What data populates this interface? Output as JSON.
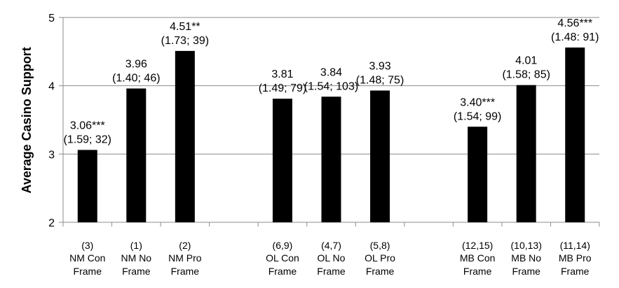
{
  "chart_data": {
    "type": "bar",
    "title": "",
    "xlabel": "",
    "ylabel": "Average Casino Support",
    "ylim": [
      2,
      5
    ],
    "yticks": [
      "2",
      "3",
      "4",
      "5"
    ],
    "grid": true,
    "bar_color": "#000000",
    "groups": [
      {
        "bars": [
          {
            "index_label": "(3)",
            "name_line1": "NM Con",
            "name_line2": "Frame",
            "value": 3.06,
            "label_line1": "3.06***",
            "label_line2": "(1.59; 32)"
          },
          {
            "index_label": "(1)",
            "name_line1": "NM No",
            "name_line2": "Frame",
            "value": 3.96,
            "label_line1": "3.96",
            "label_line2": "(1.40; 46)"
          },
          {
            "index_label": "(2)",
            "name_line1": "NM Pro",
            "name_line2": "Frame",
            "value": 4.51,
            "label_line1": "4.51**",
            "label_line2": "(1.73; 39)"
          }
        ]
      },
      {
        "bars": [
          {
            "index_label": "(6,9)",
            "name_line1": "OL Con",
            "name_line2": "Frame",
            "value": 3.81,
            "label_line1": "3.81",
            "label_line2": "(1.49; 79)"
          },
          {
            "index_label": "(4,7)",
            "name_line1": "OL No",
            "name_line2": "Frame",
            "value": 3.84,
            "label_line1": "3.84",
            "label_line2": "(1.54; 103)"
          },
          {
            "index_label": "(5,8)",
            "name_line1": "OL Pro",
            "name_line2": "Frame",
            "value": 3.93,
            "label_line1": "3.93",
            "label_line2": "(1.48; 75)"
          }
        ]
      },
      {
        "bars": [
          {
            "index_label": "(12,15)",
            "name_line1": "MB Con",
            "name_line2": "Frame",
            "value": 3.4,
            "label_line1": "3.40***",
            "label_line2": "(1.54; 99)"
          },
          {
            "index_label": "(10,13)",
            "name_line1": "MB No",
            "name_line2": "Frame",
            "value": 4.01,
            "label_line1": "4.01",
            "label_line2": "(1.58; 85)"
          },
          {
            "index_label": "(11,14)",
            "name_line1": "MB Pro",
            "name_line2": "Frame",
            "value": 4.56,
            "label_line1": "4.56***",
            "label_line2": "(1.48: 91)"
          }
        ]
      }
    ]
  }
}
